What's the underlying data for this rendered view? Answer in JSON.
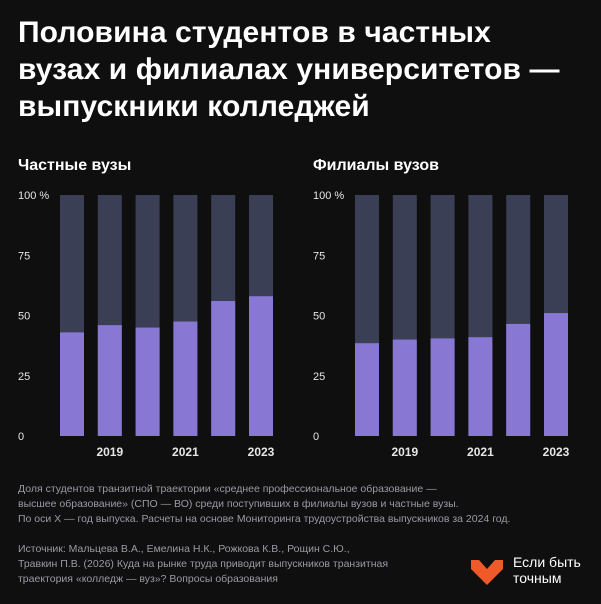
{
  "title": {
    "lines": [
      "Половина студентов в частных",
      "вузах и филиалах университетов —",
      "выпускники колледжей"
    ]
  },
  "colors": {
    "background": "#0f0f10",
    "bar_fill": "#8878d4",
    "bar_track": "#3a3f55",
    "logo": "#f05a28"
  },
  "chart_data": [
    {
      "type": "bar",
      "title": "Частные вузы",
      "categories": [
        "2018",
        "2019",
        "2020",
        "2021",
        "2022",
        "2023"
      ],
      "tick_labels": [
        "",
        "2019",
        "",
        "2021",
        "",
        "2023"
      ],
      "values": [
        43,
        46,
        45,
        47.5,
        56,
        58
      ],
      "ylim": [
        0,
        100
      ],
      "yticks": [
        0,
        25,
        50,
        75,
        100
      ],
      "ytick_labels": [
        "0",
        "25",
        "50",
        "75",
        "100 %"
      ],
      "xlabel": "",
      "ylabel": ""
    },
    {
      "type": "bar",
      "title": "Филиалы вузов",
      "categories": [
        "2018",
        "2019",
        "2020",
        "2021",
        "2022",
        "2023"
      ],
      "tick_labels": [
        "",
        "2019",
        "",
        "2021",
        "",
        "2023"
      ],
      "values": [
        38.5,
        40,
        40.5,
        41,
        46.5,
        51
      ],
      "ylim": [
        0,
        100
      ],
      "yticks": [
        0,
        25,
        50,
        75,
        100
      ],
      "ytick_labels": [
        "0",
        "25",
        "50",
        "75",
        "100 %"
      ],
      "xlabel": "",
      "ylabel": ""
    }
  ],
  "note": {
    "lines": [
      "Доля студентов транзитной траектории «среднее профессиональное образование —",
      "высшее образование» (СПО — ВО) среди поступивших в филиалы вузов и частные вузы.",
      "По оси X — год выпуска. Расчеты на основе Мониторинга трудоустройства выпускников за 2024 год."
    ]
  },
  "source": {
    "lines": [
      "Источник: Мальцева В.А., Емелина Н.К., Рожкова К.В., Рощин С.Ю.,",
      "Травкин П.В. (2026) Куда на рынке труда приводит выпускников транзитная",
      "траектория «колледж — вуз»? Вопросы образования"
    ]
  },
  "logo": {
    "icon": "heart-logo-icon",
    "lines": [
      "Если быть",
      "точным"
    ]
  }
}
